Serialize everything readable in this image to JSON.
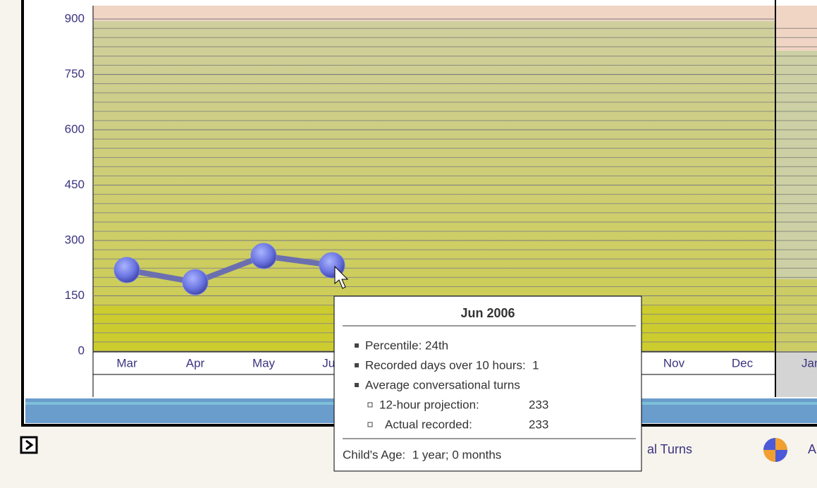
{
  "chart_data": {
    "type": "line",
    "categories": [
      "Mar",
      "Apr",
      "May",
      "Jun",
      null,
      null,
      null,
      null,
      "Nov",
      "Dec"
    ],
    "values": [
      220,
      187,
      258,
      233,
      null,
      null,
      null,
      null,
      null,
      null
    ],
    "color": "#6b6fb0",
    "marker_color": "#7382ec",
    "ylim": [
      0,
      900
    ],
    "yticks": [
      0,
      150,
      300,
      450,
      600,
      750,
      900
    ],
    "grid": true
  },
  "next_panel_label": "Jan",
  "legend_fragment": "al Turns",
  "legend_fragment_2": "A",
  "tooltip": {
    "title": "Jun 2006",
    "items": [
      "Percentile: 24th",
      "Recorded days over 10 hours:  1",
      "Average conversational turns"
    ],
    "subitems": [
      {
        "label": "12-hour projection:",
        "value": "233"
      },
      {
        "label": "Actual recorded:",
        "value": "233"
      }
    ],
    "footer": "Child's Age:  1 year; 0 months"
  }
}
